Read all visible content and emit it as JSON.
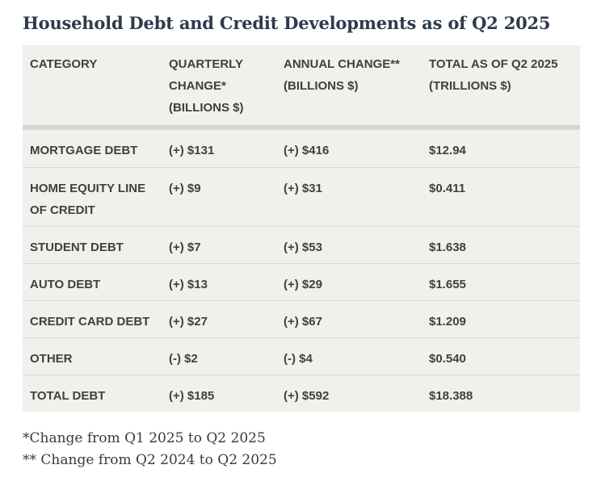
{
  "chart_data": {
    "type": "table",
    "title": "Household Debt and Credit Developments as of Q2 2025",
    "columns": [
      "CATEGORY",
      "QUARTERLY\nCHANGE*\n(BILLIONS $)",
      "ANNUAL CHANGE**\n(BILLIONS $)",
      "TOTAL AS OF Q2 2025\n(TRILLIONS $)"
    ],
    "rows": [
      {
        "category": "MORTGAGE DEBT",
        "quarterly": "(+) $131",
        "annual": "(+) $416",
        "total": "$12.94"
      },
      {
        "category": "HOME EQUITY LINE\nOF CREDIT",
        "quarterly": "(+) $9",
        "annual": "(+) $31",
        "total": "$0.411"
      },
      {
        "category": "STUDENT DEBT",
        "quarterly": "(+) $7",
        "annual": "(+) $53",
        "total": "$1.638"
      },
      {
        "category": "AUTO DEBT",
        "quarterly": "(+) $13",
        "annual": "(+) $29",
        "total": "$1.655"
      },
      {
        "category": "CREDIT CARD DEBT",
        "quarterly": "(+) $27",
        "annual": "(+) $67",
        "total": "$1.209"
      },
      {
        "category": "OTHER",
        "quarterly": "(-) $2",
        "annual": "(-) $4",
        "total": "$0.540"
      },
      {
        "category": "TOTAL DEBT",
        "quarterly": "(+) $185",
        "annual": "(+) $592",
        "total": "$18.388"
      }
    ],
    "footnotes": [
      "*Change from Q1 2025 to Q2 2025",
      "** Change from Q2 2024 to Q2 2025"
    ]
  }
}
